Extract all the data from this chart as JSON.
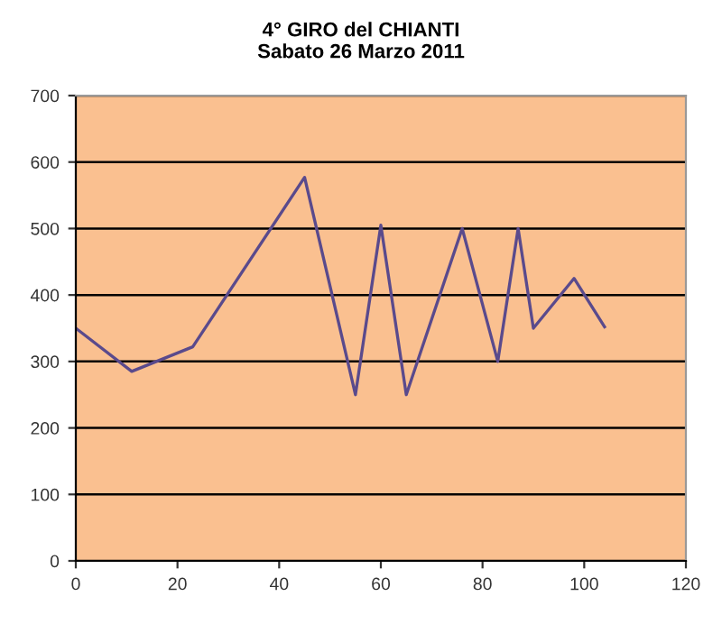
{
  "chart_data": {
    "type": "line",
    "title": "4° GIRO del CHIANTI\nSabato 26 Marzo 2011",
    "x": [
      0,
      11,
      23,
      45,
      55,
      60,
      65,
      76,
      83,
      87,
      90,
      98,
      104
    ],
    "series": [
      {
        "color": "#5a4a8c",
        "values": [
          350,
          285,
          322,
          577,
          250,
          505,
          250,
          500,
          300,
          500,
          350,
          425,
          352
        ]
      }
    ],
    "xlim": [
      0,
      120
    ],
    "xticks": [
      0,
      20,
      40,
      60,
      80,
      100,
      120
    ],
    "ylim": [
      0,
      700
    ],
    "yticks": [
      0,
      100,
      200,
      300,
      400,
      500,
      600,
      700
    ],
    "grid": "y",
    "legend": false,
    "marker": "none",
    "line_style": "solid"
  }
}
